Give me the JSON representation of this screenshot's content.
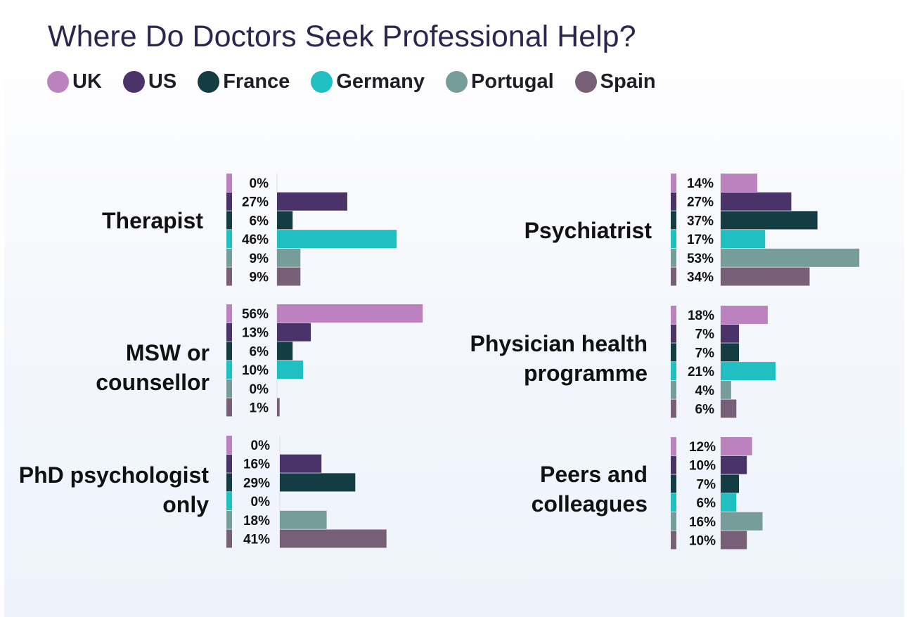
{
  "title": "Where Do Doctors Seek Professional Help?",
  "legend": [
    {
      "name": "UK",
      "color": "#bc82bf"
    },
    {
      "name": "US",
      "color": "#4a3368"
    },
    {
      "name": "France",
      "color": "#133c43"
    },
    {
      "name": "Germany",
      "color": "#20bfc2"
    },
    {
      "name": "Portugal",
      "color": "#779d9b"
    },
    {
      "name": "Spain",
      "color": "#775f78"
    }
  ],
  "chart_data": {
    "type": "bar",
    "orientation": "horizontal",
    "title": "Where Do Doctors Seek Professional Help?",
    "unit": "%",
    "series_names": [
      "UK",
      "US",
      "France",
      "Germany",
      "Portugal",
      "Spain"
    ],
    "panels": [
      {
        "category": [
          "Therapist"
        ],
        "values": [
          0,
          27,
          6,
          46,
          9,
          9
        ]
      },
      {
        "category": [
          "MSW or",
          "counsellor"
        ],
        "values": [
          56,
          13,
          6,
          10,
          0,
          1
        ]
      },
      {
        "category": [
          "PhD psychologist",
          "only"
        ],
        "values": [
          0,
          16,
          29,
          0,
          18,
          41
        ]
      },
      {
        "category": [
          "Psychiatrist"
        ],
        "values": [
          14,
          27,
          37,
          17,
          53,
          34
        ]
      },
      {
        "category": [
          "Physician health",
          "programme"
        ],
        "values": [
          18,
          7,
          7,
          21,
          4,
          6
        ]
      },
      {
        "category": [
          "Peers and",
          "colleagues"
        ],
        "values": [
          12,
          10,
          7,
          6,
          16,
          10
        ]
      }
    ]
  }
}
